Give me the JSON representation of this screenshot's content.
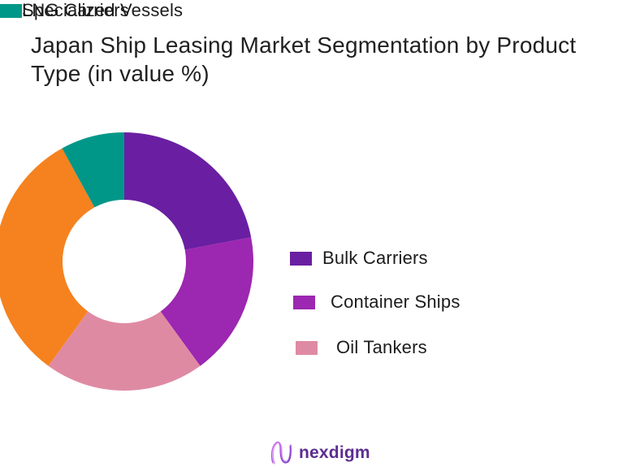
{
  "title": "Japan Ship Leasing Market Segmentation by Product Type (in value %)",
  "chart_data": {
    "type": "pie",
    "subtype": "donut",
    "title": "Japan Ship Leasing Market Segmentation by Product Type (in value %)",
    "segments": [
      {
        "label": "Bulk Carriers",
        "value": 22,
        "color": "#6A1FA2"
      },
      {
        "label": "Container Ships",
        "value": 18,
        "color": "#9C27B0"
      },
      {
        "label": "Oil Tankers",
        "value": 20,
        "color": "#DF8AA3"
      },
      {
        "label": "LNG Carriers",
        "value": 32,
        "color": "#F5821F"
      },
      {
        "label": "Specialized Vessels",
        "value": 8,
        "color": "#009789"
      }
    ],
    "start_angle_deg": 0,
    "direction": "clockwise",
    "inner_radius_ratio": 0.48,
    "legend_position": "right",
    "values_shown_on_chart": false,
    "note": "segment values estimated from arc angles; no numeric labels shown in figure"
  },
  "footer": {
    "brand": "nexdigm"
  },
  "colors": {
    "background": "#ffffff",
    "title_text": "#212121",
    "logo_text": "#5C2D91"
  }
}
